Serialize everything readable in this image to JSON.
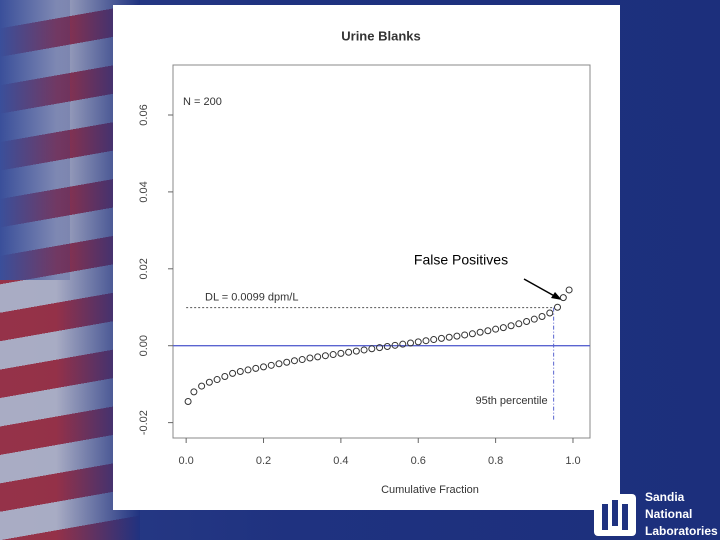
{
  "chart_data": {
    "type": "scatter",
    "title": "Urine Blanks",
    "xlabel": "Cumulative Fraction",
    "annotations": [
      "N = 200",
      "False Positives"
    ],
    "x": [
      0.005,
      0.02,
      0.04,
      0.06,
      0.08,
      0.1,
      0.12,
      0.14,
      0.16,
      0.18,
      0.2,
      0.22,
      0.24,
      0.26,
      0.28,
      0.3,
      0.32,
      0.34,
      0.36,
      0.38,
      0.4,
      0.42,
      0.44,
      0.46,
      0.48,
      0.5,
      0.52,
      0.54,
      0.56,
      0.58,
      0.6,
      0.62,
      0.64,
      0.66,
      0.68,
      0.7,
      0.72,
      0.74,
      0.76,
      0.78,
      0.8,
      0.82,
      0.84,
      0.86,
      0.88,
      0.9,
      0.92,
      0.94,
      0.96,
      0.975,
      0.99
    ],
    "values": [
      -0.0145,
      -0.012,
      -0.0105,
      -0.0095,
      -0.0088,
      -0.008,
      -0.0072,
      -0.0067,
      -0.0063,
      -0.0059,
      -0.0055,
      -0.0051,
      -0.0047,
      -0.0043,
      -0.0039,
      -0.0036,
      -0.0032,
      -0.0029,
      -0.0026,
      -0.0023,
      -0.002,
      -0.0017,
      -0.0014,
      -0.0011,
      -0.0008,
      -0.0005,
      -0.0002,
      0.0001,
      0.0004,
      0.0007,
      0.001,
      0.0013,
      0.0016,
      0.0019,
      0.0022,
      0.0025,
      0.0028,
      0.0031,
      0.0035,
      0.0039,
      0.0043,
      0.0047,
      0.0052,
      0.0057,
      0.0063,
      0.0069,
      0.0076,
      0.0085,
      0.01,
      0.0125,
      0.0145
    ],
    "marker_color": "#333333",
    "xlim": [
      -0.034,
      1.044
    ],
    "ylim": [
      -0.024,
      0.073
    ],
    "xticks": [
      {
        "value": 0,
        "label": "0.0"
      },
      0.2,
      0.4,
      0.6,
      0.8,
      {
        "value": 1,
        "label": "1.0"
      }
    ],
    "yticks": [
      -0.02,
      {
        "value": 0,
        "label": "0.00"
      },
      0.02,
      0.04,
      0.06
    ],
    "reference_line": {
      "value": 0,
      "color": "#5a64d0"
    },
    "detection_limit": {
      "value": 0.0099,
      "label": "DL = 0.0099 dpm/L"
    },
    "percentile": {
      "value": 0.95,
      "label": "95th percentile"
    }
  },
  "logo": {
    "lines": [
      "Sandia",
      "National",
      "Laboratories"
    ]
  }
}
